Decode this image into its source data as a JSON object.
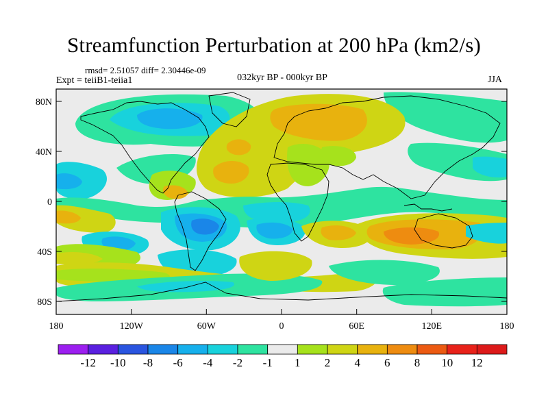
{
  "title": "Streamfunction Perturbation at 200 hPa (km2/s)",
  "stats": {
    "rmsd": "rmsd= 2.51057 diff= 2.30446e-09",
    "expt": "Expt = teiiB1-teiia1",
    "period": "032kyr BP - 000kyr BP",
    "season": "JJA"
  },
  "axes": {
    "lat_labels": [
      "80N",
      "40N",
      "0",
      "40S",
      "80S"
    ],
    "lon_labels": [
      "180",
      "120W",
      "60W",
      "0",
      "60E",
      "120E",
      "180"
    ]
  },
  "colorbar": {
    "labels": [
      "-12",
      "-10",
      "-8",
      "-6",
      "-4",
      "-2",
      "-1",
      "1",
      "2",
      "4",
      "6",
      "8",
      "10",
      "12"
    ],
    "colors": [
      "#9c1ff0",
      "#5a20e0",
      "#2a55e0",
      "#1a86e8",
      "#16b0ec",
      "#18d2dc",
      "#2ee3a0",
      "#ebebeb",
      "#a6e21c",
      "#cfd514",
      "#e8b20e",
      "#ee8c10",
      "#ec5a12",
      "#e8221a",
      "#dd1a1a"
    ]
  },
  "chart_data": {
    "type": "contour_map",
    "projection": "cylindrical equidistant",
    "variable": "Streamfunction Perturbation at 200 hPa (km2/s)",
    "levels": [
      -12,
      -10,
      -8,
      -6,
      -4,
      -2,
      -1,
      1,
      2,
      4,
      6,
      8,
      10,
      12
    ],
    "lon_range": [
      -180,
      180
    ],
    "lat_range": [
      -90,
      90
    ]
  }
}
